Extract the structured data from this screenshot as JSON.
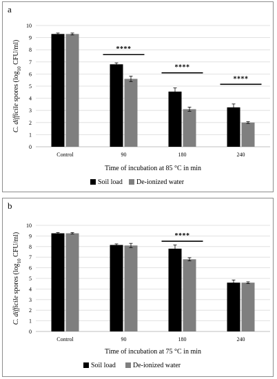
{
  "chart_data": [
    {
      "type": "bar",
      "panel": "a",
      "categories": [
        "Control",
        "90",
        "180",
        "240"
      ],
      "series": [
        {
          "name": "Soil load",
          "color": "#000000",
          "values": [
            9.3,
            6.8,
            4.55,
            3.25
          ],
          "errors": [
            0.08,
            0.12,
            0.3,
            0.28
          ]
        },
        {
          "name": "De-ionized water",
          "color": "#7f7f7f",
          "values": [
            9.3,
            5.6,
            3.1,
            2.0
          ],
          "errors": [
            0.08,
            0.22,
            0.17,
            0.07
          ]
        }
      ],
      "ylim": [
        0,
        10
      ],
      "yticks": [
        "0",
        "1",
        "2",
        "3",
        "4",
        "5",
        "6",
        "7",
        "8",
        "9",
        "10"
      ],
      "xlabel": "Time of incubation at 85 °C in min",
      "ylabel_italic": "C. difficile",
      "ylabel_rest": " spores (log",
      "ylabel_sub": "10",
      "ylabel_end": " CFU/ml)",
      "significance": [
        {
          "category": "90",
          "label": "****",
          "y": 7.6
        },
        {
          "category": "180",
          "label": "****",
          "y": 6.1
        },
        {
          "category": "240",
          "label": "****",
          "y": 5.15
        }
      ],
      "legend_position": "bottom"
    },
    {
      "type": "bar",
      "panel": "b",
      "categories": [
        "Control",
        "90",
        "180",
        "240"
      ],
      "series": [
        {
          "name": "Soil load",
          "color": "#000000",
          "values": [
            9.25,
            8.15,
            7.8,
            4.6
          ],
          "errors": [
            0.07,
            0.1,
            0.35,
            0.25
          ]
        },
        {
          "name": "De-ionized water",
          "color": "#7f7f7f",
          "values": [
            9.25,
            8.1,
            6.8,
            4.6
          ],
          "errors": [
            0.07,
            0.2,
            0.15,
            0.08
          ]
        }
      ],
      "ylim": [
        0,
        10
      ],
      "yticks": [
        "0",
        "1",
        "2",
        "3",
        "4",
        "5",
        "6",
        "7",
        "8",
        "9",
        "10"
      ],
      "xlabel": "Time of incubation at 75 °C in min",
      "ylabel_italic": "C. difficile",
      "ylabel_rest": " spores (log",
      "ylabel_sub": "10",
      "ylabel_end": " CFU/ml)",
      "significance": [
        {
          "category": "180",
          "label": "****",
          "y": 8.5
        }
      ],
      "legend_position": "bottom"
    }
  ],
  "panels": [
    {
      "letter": "a"
    },
    {
      "letter": "b"
    }
  ]
}
